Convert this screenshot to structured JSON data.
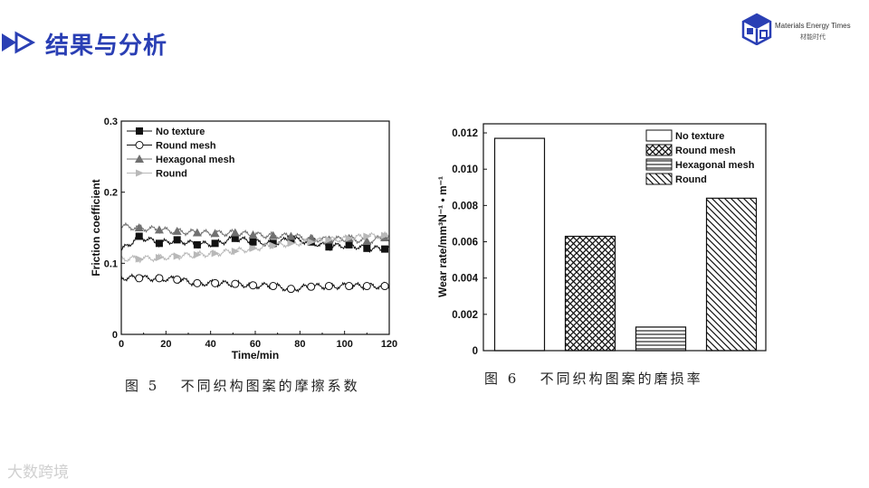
{
  "header": {
    "title": "结果与分析"
  },
  "logo": {
    "name_en": "Materials Energy Times",
    "name_cn": "材能时代"
  },
  "watermark": "大数跨境",
  "colors": {
    "title": "#2a3fb4",
    "logo": "#2a3fb4"
  },
  "icons": {
    "header": "double-play-arrow-icon",
    "logo": "cube-logo-icon"
  },
  "captions": {
    "fig5": "图 5   不同织构图案的摩擦系数",
    "fig6": "图 6   不同织构图案的磨损率"
  },
  "chart_data": [
    {
      "type": "line",
      "xlabel": "Time/min",
      "ylabel": "Friction coefficient",
      "xlim": [
        0,
        120
      ],
      "ylim": [
        0,
        0.3
      ],
      "x_ticks": [
        0,
        20,
        40,
        60,
        80,
        100,
        120
      ],
      "y_ticks": [
        0,
        0.1,
        0.2,
        0.3
      ],
      "y_tick_labels": [
        "0",
        "0.1",
        "0.2",
        "0.3"
      ],
      "legend_position": "top-left",
      "grid": false,
      "series": [
        {
          "name": "No texture",
          "marker": "filled-square",
          "color": "#111111",
          "x": [
            0,
            8,
            17,
            25,
            34,
            42,
            51,
            59,
            68,
            76,
            85,
            93,
            102,
            110,
            118
          ],
          "y": [
            0.118,
            0.138,
            0.128,
            0.133,
            0.126,
            0.128,
            0.135,
            0.13,
            0.128,
            0.134,
            0.13,
            0.123,
            0.126,
            0.121,
            0.12
          ]
        },
        {
          "name": "Round mesh",
          "marker": "open-circle",
          "color": "#111111",
          "x": [
            0,
            8,
            17,
            25,
            34,
            42,
            51,
            59,
            68,
            76,
            85,
            93,
            102,
            110,
            118
          ],
          "y": [
            0.08,
            0.079,
            0.079,
            0.077,
            0.072,
            0.072,
            0.071,
            0.069,
            0.068,
            0.064,
            0.067,
            0.068,
            0.068,
            0.068,
            0.068
          ]
        },
        {
          "name": "Hexagonal mesh",
          "marker": "filled-triangle",
          "color": "#707070",
          "x": [
            0,
            8,
            17,
            25,
            34,
            42,
            51,
            59,
            68,
            76,
            85,
            93,
            102,
            110,
            118
          ],
          "y": [
            0.152,
            0.15,
            0.147,
            0.145,
            0.143,
            0.142,
            0.143,
            0.14,
            0.139,
            0.138,
            0.135,
            0.133,
            0.135,
            0.131,
            0.136
          ]
        },
        {
          "name": "Round",
          "marker": "right-triangle",
          "color": "#b8b8b8",
          "x": [
            0,
            8,
            17,
            25,
            34,
            42,
            51,
            59,
            68,
            76,
            85,
            93,
            102,
            110,
            118
          ],
          "y": [
            0.107,
            0.106,
            0.108,
            0.11,
            0.112,
            0.114,
            0.117,
            0.121,
            0.125,
            0.128,
            0.13,
            0.133,
            0.135,
            0.138,
            0.139
          ]
        }
      ]
    },
    {
      "type": "bar",
      "xlabel": "",
      "ylabel": "Wear rate/mm³N⁻¹ • m⁻¹",
      "ylim": [
        0,
        0.0125
      ],
      "y_ticks": [
        0,
        0.002,
        0.004,
        0.006,
        0.008,
        0.01,
        0.012
      ],
      "y_tick_labels": [
        "0",
        "0.002",
        "0.004",
        "0.006",
        "0.008",
        "0.010",
        "0.012"
      ],
      "legend_position": "top-right",
      "categories": [
        "No texture",
        "Round mesh",
        "Hexagonal mesh",
        "Round"
      ],
      "values": [
        0.0117,
        0.0063,
        0.0013,
        0.0084
      ],
      "patterns": [
        "empty",
        "cross-hatch",
        "horizontal",
        "diagonal"
      ]
    }
  ]
}
